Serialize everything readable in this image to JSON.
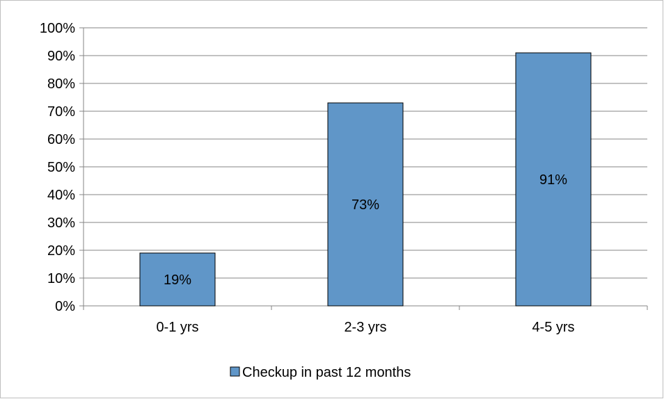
{
  "chart_data": {
    "type": "bar",
    "title": "",
    "xlabel": "",
    "ylabel": "",
    "categories": [
      "0-1 yrs",
      "2-3 yrs",
      "4-5 yrs"
    ],
    "series": [
      {
        "name": "Checkup in past 12 months",
        "values": [
          19,
          73,
          91
        ],
        "color": "#6096c8"
      }
    ],
    "value_labels": [
      "19%",
      "73%",
      "91%"
    ],
    "y_tick_labels": [
      "0%",
      "10%",
      "20%",
      "30%",
      "40%",
      "50%",
      "60%",
      "70%",
      "80%",
      "90%",
      "100%"
    ],
    "y_unit": "%",
    "ylim": [
      0,
      100
    ],
    "y_step": 10,
    "grid": true,
    "legend_position": "bottom"
  },
  "colors": {
    "bar_fill": "#6096c8",
    "bar_stroke": "#000000",
    "gridline": "#868686",
    "axis": "#868686",
    "frame": "#bfbfbf"
  }
}
